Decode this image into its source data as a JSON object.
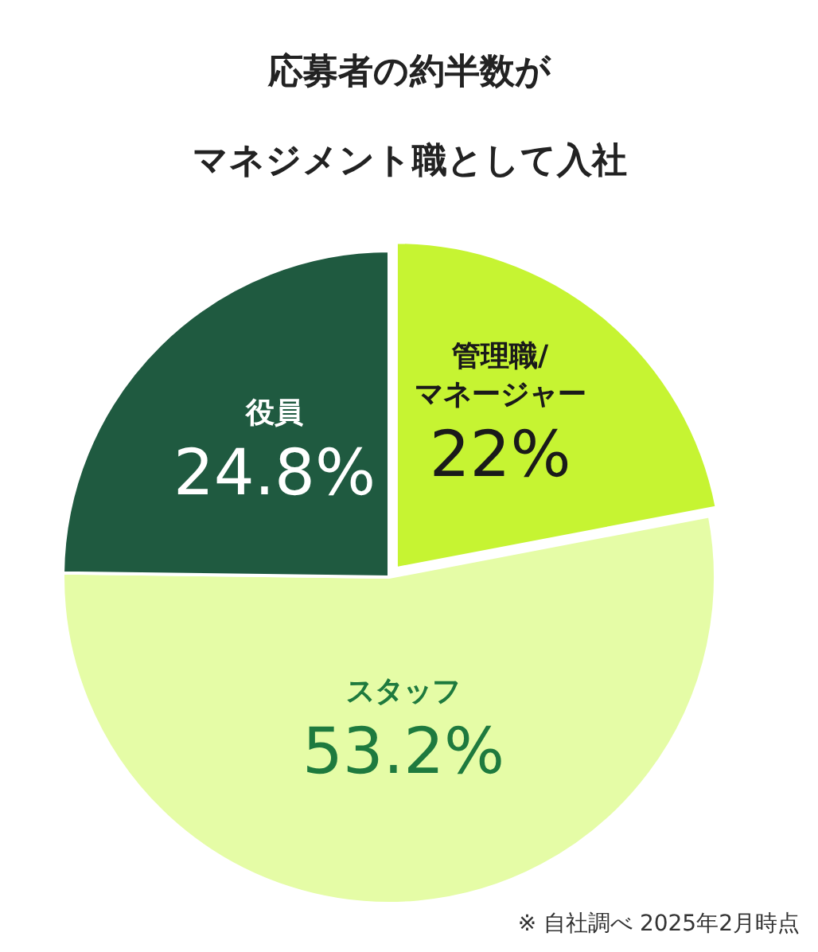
{
  "chart_data": {
    "type": "pie",
    "title": "応募者の約半数が",
    "subtitle": "マネジメント職として入社",
    "categories": [
      "管理職/マネージャー",
      "スタッフ",
      "役員"
    ],
    "values": [
      22,
      53.2,
      24.8
    ],
    "colors": [
      "#c6f432",
      "#e5fca6",
      "#1f5a40"
    ],
    "value_labels": [
      "22%",
      "53.2%",
      "24.8%"
    ],
    "annotations": [
      "※ 自社調べ 2025年2月時点"
    ]
  }
}
